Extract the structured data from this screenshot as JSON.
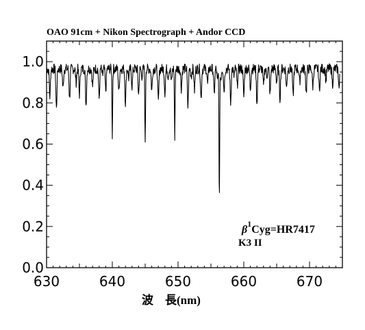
{
  "chart_data": {
    "type": "line",
    "title": "OAO 91cm + Nikon Spectrograph + Andor CCD",
    "xlabel": "波　長(nm)",
    "ylabel": "",
    "xlim": [
      630,
      675
    ],
    "ylim": [
      0.0,
      1.1
    ],
    "x_ticks": [
      630,
      640,
      650,
      660,
      670
    ],
    "x_tick_labels": [
      "630",
      "640",
      "650",
      "660",
      "670"
    ],
    "y_ticks": [
      0.0,
      0.2,
      0.4,
      0.6,
      0.8,
      1.0
    ],
    "y_tick_labels": [
      "0.0",
      "0.2",
      "0.4",
      "0.6",
      "0.8",
      "1.0"
    ],
    "grid": false,
    "annotation": {
      "star_greek": "β",
      "star_superscript": "1",
      "star_rest": "Cyg=HR7417",
      "spectral_type": "K3 II"
    },
    "series": [
      {
        "continuum": 0.965,
        "x": [
          630.0,
          630.5,
          631.0,
          631.5,
          632.0,
          632.5,
          633.0,
          633.5,
          634.0,
          634.5,
          635.0,
          635.5,
          636.0,
          636.5,
          637.0,
          637.5,
          638.0,
          638.5,
          639.0,
          639.5,
          640.0,
          640.5,
          641.0,
          641.5,
          642.0,
          642.5,
          643.0,
          643.5,
          644.0,
          644.5,
          645.0,
          645.5,
          646.0,
          646.5,
          647.0,
          647.5,
          648.0,
          648.5,
          649.0,
          649.5,
          650.0,
          650.5,
          651.0,
          651.5,
          652.0,
          652.5,
          653.0,
          653.5,
          654.0,
          654.5,
          655.0,
          655.5,
          656.0,
          656.28,
          656.5,
          657.0,
          657.5,
          658.0,
          658.5,
          659.0,
          659.5,
          660.0,
          660.5,
          661.0,
          661.5,
          662.0,
          662.5,
          663.0,
          663.5,
          664.0,
          664.5,
          665.0,
          665.5,
          666.0,
          666.5,
          667.0,
          667.5,
          668.0,
          668.5,
          669.0,
          669.5,
          670.0,
          670.5,
          671.0,
          671.5,
          672.0,
          672.5,
          673.0,
          673.5,
          674.0,
          674.5
        ],
        "y": [
          0.97,
          0.83,
          0.94,
          0.77,
          0.95,
          0.87,
          0.98,
          0.82,
          0.96,
          0.9,
          0.84,
          0.95,
          0.79,
          0.94,
          0.88,
          0.97,
          0.82,
          0.93,
          0.86,
          0.95,
          0.64,
          0.94,
          0.85,
          0.96,
          0.8,
          0.92,
          0.88,
          0.95,
          0.84,
          0.93,
          0.59,
          0.95,
          0.86,
          0.94,
          0.8,
          0.96,
          0.85,
          0.93,
          0.9,
          0.62,
          0.94,
          0.87,
          0.95,
          0.78,
          0.93,
          0.86,
          0.96,
          0.82,
          0.94,
          0.89,
          0.95,
          0.84,
          0.9,
          0.29,
          0.92,
          0.86,
          0.96,
          0.8,
          0.93,
          0.88,
          0.95,
          0.83,
          0.94,
          0.87,
          0.97,
          0.8,
          0.95,
          0.88,
          0.93,
          0.84,
          0.96,
          0.9,
          0.82,
          0.94,
          0.87,
          0.96,
          0.83,
          0.95,
          0.9,
          0.97,
          0.85,
          0.98,
          0.88,
          0.99,
          0.86,
          0.97,
          0.91,
          0.98,
          0.89,
          0.97,
          0.87
        ]
      }
    ]
  }
}
